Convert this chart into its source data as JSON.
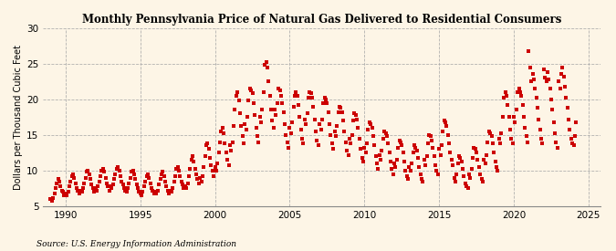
{
  "title": "Monthly Pennsylvania Price of Natural Gas Delivered to Residential Consumers",
  "ylabel": "Dollars per Thousand Cubic Feet",
  "source": "Source: U.S. Energy Information Administration",
  "background_color": "#FDF5E6",
  "plot_bg_color": "#FDF5E6",
  "marker_color": "#CC0000",
  "marker_size": 2.5,
  "ylim": [
    5,
    30
  ],
  "yticks": [
    5,
    10,
    15,
    20,
    25,
    30
  ],
  "xlim": [
    1988.5,
    2025.8
  ],
  "xticks": [
    1990,
    1995,
    2000,
    2005,
    2010,
    2015,
    2020,
    2025
  ],
  "values": [
    6.0,
    5.8,
    6.2,
    6.8,
    7.5,
    8.2,
    8.8,
    8.5,
    7.8,
    7.2,
    7.0,
    6.5,
    6.8,
    6.5,
    7.0,
    7.8,
    8.5,
    9.2,
    9.5,
    9.0,
    8.2,
    7.5,
    7.2,
    6.8,
    7.2,
    7.0,
    7.5,
    8.2,
    9.0,
    9.8,
    10.0,
    9.5,
    8.8,
    8.0,
    7.5,
    7.0,
    7.5,
    7.2,
    7.8,
    8.5,
    9.2,
    10.0,
    10.2,
    9.8,
    9.0,
    8.2,
    7.8,
    7.2,
    7.8,
    7.5,
    8.0,
    8.8,
    9.5,
    10.2,
    10.5,
    10.0,
    9.2,
    8.5,
    8.0,
    7.5,
    7.2,
    7.0,
    7.5,
    8.2,
    9.0,
    9.8,
    10.0,
    9.5,
    8.8,
    8.0,
    7.5,
    7.0,
    6.8,
    6.5,
    7.0,
    7.8,
    8.5,
    9.2,
    9.5,
    9.0,
    8.2,
    7.5,
    7.2,
    6.8,
    7.0,
    6.8,
    7.2,
    8.0,
    8.8,
    9.5,
    9.8,
    9.2,
    8.5,
    7.8,
    7.2,
    6.8,
    7.2,
    7.0,
    7.5,
    8.5,
    9.2,
    10.2,
    10.5,
    10.0,
    9.2,
    8.5,
    8.0,
    7.5,
    7.8,
    7.5,
    8.2,
    9.2,
    10.2,
    11.5,
    12.0,
    11.2,
    10.2,
    9.5,
    8.8,
    8.2,
    9.0,
    8.5,
    9.2,
    10.5,
    12.0,
    13.5,
    13.8,
    13.0,
    11.8,
    10.8,
    10.0,
    9.2,
    10.5,
    10.0,
    11.0,
    12.5,
    14.0,
    15.5,
    16.0,
    15.2,
    13.8,
    12.5,
    11.5,
    10.8,
    13.5,
    12.8,
    14.0,
    16.2,
    18.5,
    20.5,
    21.0,
    19.8,
    18.0,
    16.2,
    14.8,
    13.8,
    16.5,
    15.8,
    17.5,
    19.8,
    21.5,
    21.2,
    20.8,
    19.5,
    17.8,
    16.0,
    14.8,
    14.0,
    17.5,
    16.8,
    18.5,
    21.0,
    24.8,
    25.2,
    24.5,
    22.5,
    20.5,
    18.5,
    17.0,
    16.0,
    18.5,
    17.8,
    19.5,
    21.5,
    21.2,
    20.5,
    19.5,
    18.2,
    16.5,
    15.0,
    14.0,
    13.2,
    16.0,
    15.2,
    16.8,
    19.0,
    20.5,
    21.0,
    20.5,
    19.2,
    17.5,
    15.8,
    14.5,
    13.8,
    17.2,
    16.5,
    18.0,
    20.2,
    21.0,
    20.8,
    20.2,
    19.0,
    17.2,
    15.5,
    14.2,
    13.5,
    16.5,
    15.8,
    17.2,
    19.5,
    20.2,
    20.0,
    19.5,
    18.2,
    16.5,
    15.0,
    13.8,
    13.0,
    15.5,
    14.8,
    16.2,
    18.2,
    19.0,
    18.8,
    18.2,
    17.0,
    15.5,
    14.0,
    12.8,
    12.2,
    14.5,
    13.8,
    15.0,
    17.0,
    18.0,
    17.8,
    17.2,
    16.0,
    14.5,
    13.0,
    11.8,
    11.2,
    13.2,
    12.5,
    13.8,
    15.8,
    16.8,
    16.5,
    16.0,
    14.8,
    13.5,
    12.0,
    11.0,
    10.2,
    12.2,
    11.5,
    12.8,
    14.5,
    15.5,
    15.2,
    14.8,
    13.8,
    12.5,
    11.2,
    10.2,
    9.5,
    11.0,
    10.5,
    11.5,
    13.2,
    14.2,
    14.0,
    13.5,
    12.5,
    11.2,
    10.0,
    9.2,
    8.8,
    10.5,
    10.0,
    11.0,
    12.5,
    13.5,
    13.2,
    12.8,
    11.8,
    10.5,
    9.5,
    8.8,
    8.5,
    11.5,
    10.8,
    12.0,
    13.8,
    15.0,
    14.8,
    14.2,
    13.2,
    12.0,
    10.8,
    10.0,
    9.5,
    13.0,
    12.2,
    13.5,
    15.5,
    17.0,
    16.8,
    16.2,
    15.0,
    13.8,
    12.5,
    11.5,
    10.8,
    9.0,
    8.5,
    9.5,
    11.0,
    12.0,
    11.8,
    11.2,
    10.2,
    9.2,
    8.2,
    7.8,
    7.5,
    9.5,
    9.0,
    10.2,
    11.8,
    13.2,
    13.0,
    12.5,
    11.5,
    10.5,
    9.5,
    8.8,
    8.5,
    11.5,
    11.0,
    12.2,
    14.0,
    15.5,
    15.2,
    14.8,
    13.8,
    12.5,
    11.2,
    10.5,
    10.0,
    14.5,
    13.8,
    15.2,
    17.5,
    20.2,
    21.0,
    20.5,
    19.2,
    17.5,
    15.8,
    14.5,
    13.8,
    17.5,
    16.8,
    18.5,
    21.0,
    21.5,
    21.0,
    20.5,
    19.2,
    17.5,
    16.0,
    14.8,
    14.0,
    26.8,
    24.5,
    22.5,
    23.5,
    22.8,
    21.5,
    20.2,
    18.8,
    17.2,
    15.8,
    14.5,
    13.8,
    24.2,
    23.0,
    22.5,
    23.8,
    22.8,
    21.5,
    20.0,
    18.5,
    16.8,
    15.2,
    14.0,
    13.2,
    22.5,
    21.5,
    23.5,
    24.5,
    23.2,
    21.8,
    20.2,
    18.8,
    17.2,
    15.8,
    14.5,
    13.8,
    13.5,
    14.8,
    16.8
  ],
  "start_year": 1989,
  "start_month": 1
}
